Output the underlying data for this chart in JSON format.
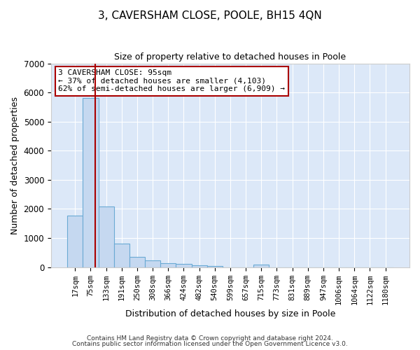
{
  "title": "3, CAVERSHAM CLOSE, POOLE, BH15 4QN",
  "subtitle": "Size of property relative to detached houses in Poole",
  "xlabel": "Distribution of detached houses by size in Poole",
  "ylabel": "Number of detached properties",
  "footnote1": "Contains HM Land Registry data © Crown copyright and database right 2024.",
  "footnote2": "Contains public sector information licensed under the Open Government Licence v3.0.",
  "annotation_title": "3 CAVERSHAM CLOSE: 95sqm",
  "annotation_line1": "← 37% of detached houses are smaller (4,103)",
  "annotation_line2": "62% of semi-detached houses are larger (6,909) →",
  "bar_color": "#c5d8f0",
  "bar_edge_color": "#6aaad4",
  "vline_color": "#aa0000",
  "background_color": "#dce8f8",
  "grid_color": "#ffffff",
  "categories": [
    "17sqm",
    "75sqm",
    "133sqm",
    "191sqm",
    "250sqm",
    "308sqm",
    "366sqm",
    "424sqm",
    "482sqm",
    "540sqm",
    "599sqm",
    "657sqm",
    "715sqm",
    "773sqm",
    "831sqm",
    "889sqm",
    "947sqm",
    "1006sqm",
    "1064sqm",
    "1122sqm",
    "1180sqm"
  ],
  "values": [
    1780,
    5800,
    2080,
    800,
    350,
    220,
    130,
    100,
    60,
    50,
    0,
    0,
    80,
    0,
    0,
    0,
    0,
    0,
    0,
    0,
    0
  ],
  "vline_x": 1.3,
  "ylim": [
    0,
    7000
  ],
  "yticks": [
    0,
    1000,
    2000,
    3000,
    4000,
    5000,
    6000,
    7000
  ],
  "title_fontsize": 11,
  "subtitle_fontsize": 9,
  "axis_label_fontsize": 9,
  "tick_fontsize": 7.5,
  "footnote_fontsize": 6.5,
  "annotation_fontsize": 8
}
